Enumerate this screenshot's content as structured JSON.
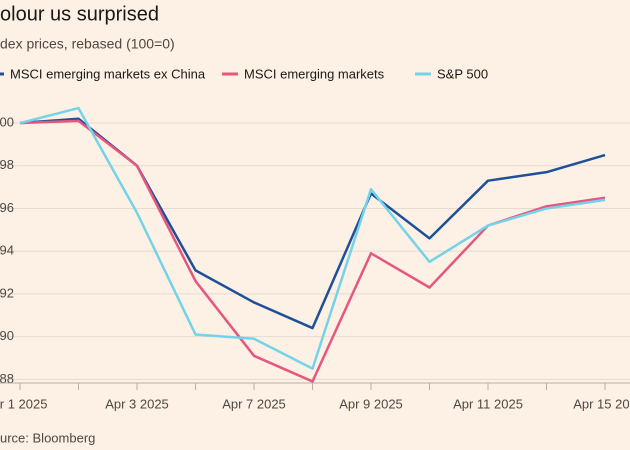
{
  "chart_data": {
    "type": "line",
    "title": "olour us surprised",
    "subtitle": "dex prices, rebased (100=0)",
    "source": "urce: Bloomberg",
    "categories": [
      "pr 1 2025",
      null,
      "Apr 3 2025",
      null,
      "Apr 7 2025",
      null,
      "Apr 9 2025",
      null,
      "Apr 11 2025",
      null,
      "Apr 15 202"
    ],
    "series": [
      {
        "name": "MSCI emerging markets ex China",
        "color": "#1f4f99",
        "values": [
          100,
          100.2,
          98.0,
          93.1,
          91.6,
          90.4,
          96.7,
          94.6,
          97.3,
          97.7,
          98.5
        ]
      },
      {
        "name": "MSCI emerging markets",
        "color": "#e5577f",
        "values": [
          100,
          100.1,
          98.0,
          92.6,
          89.1,
          87.9,
          93.9,
          92.3,
          95.2,
          96.1,
          96.5
        ]
      },
      {
        "name": "S&P 500",
        "color": "#73d3e8",
        "values": [
          100,
          100.7,
          95.8,
          90.1,
          89.9,
          88.5,
          96.9,
          93.5,
          95.2,
          96.0,
          96.4
        ]
      }
    ],
    "ylim": [
      87.5,
      101.5
    ],
    "yticks": [
      {
        "value": 100,
        "label": "00"
      },
      98,
      96,
      94,
      92,
      90,
      88
    ],
    "grid": true
  }
}
